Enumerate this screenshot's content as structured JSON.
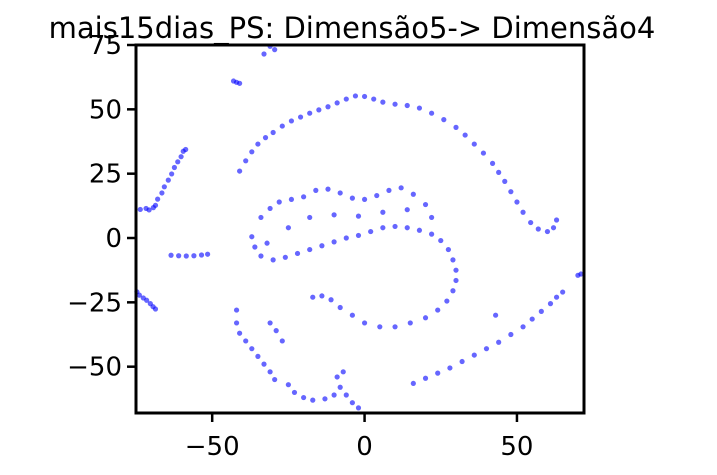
{
  "chart_data": {
    "type": "scatter",
    "title": "mais15dias_PS: Dimensão5-> Dimensão4",
    "xlabel": "",
    "ylabel": "",
    "xlim": [
      -75,
      72
    ],
    "ylim": [
      -68,
      75
    ],
    "xticks": [
      -50,
      0,
      50
    ],
    "xtick_labels": [
      "−50",
      "0",
      "50"
    ],
    "yticks": [
      75,
      50,
      25,
      0,
      -25,
      -50
    ],
    "ytick_labels": [
      "75",
      "50",
      "25",
      "0",
      "−25",
      "−50"
    ],
    "grid": false,
    "legend": "none",
    "color": "#0000ff",
    "series": [
      {
        "values": [
          {
            "x": -73.6,
            "y": 11.1
          },
          {
            "x": -71.7,
            "y": 11.5
          },
          {
            "x": -70.7,
            "y": 10.9
          },
          {
            "x": -69.3,
            "y": 11.8
          },
          {
            "x": -68.6,
            "y": 12.7
          },
          {
            "x": -67.9,
            "y": 15.1
          },
          {
            "x": -66.5,
            "y": 17.5
          },
          {
            "x": -65.7,
            "y": 19.9
          },
          {
            "x": -64.4,
            "y": 22.5
          },
          {
            "x": -63.3,
            "y": 24.9
          },
          {
            "x": -62.4,
            "y": 27.4
          },
          {
            "x": -61.3,
            "y": 29.6
          },
          {
            "x": -60.2,
            "y": 31.6
          },
          {
            "x": -59.5,
            "y": 33.7
          },
          {
            "x": -58.7,
            "y": 34.4
          },
          {
            "x": -74.7,
            "y": -20.9
          },
          {
            "x": -73.9,
            "y": -22.2
          },
          {
            "x": -72.6,
            "y": -23.3
          },
          {
            "x": -71.5,
            "y": -24.2
          },
          {
            "x": -70.3,
            "y": -25.5
          },
          {
            "x": -69.4,
            "y": -26.7
          },
          {
            "x": -68.6,
            "y": -27.6
          },
          {
            "x": -63.5,
            "y": -6.7
          },
          {
            "x": -61.0,
            "y": -6.9
          },
          {
            "x": -58.5,
            "y": -7.0
          },
          {
            "x": -56.0,
            "y": -6.9
          },
          {
            "x": -53.5,
            "y": -6.6
          },
          {
            "x": -51.5,
            "y": -6.3
          },
          {
            "x": -43.0,
            "y": 61.0
          },
          {
            "x": -42.0,
            "y": 60.5
          },
          {
            "x": -41.0,
            "y": 60.1
          },
          {
            "x": -31.0,
            "y": 74.5
          },
          {
            "x": -29.5,
            "y": 73.2
          },
          {
            "x": -33.0,
            "y": 71.5
          },
          {
            "x": -41.0,
            "y": 26.0
          },
          {
            "x": -39.0,
            "y": 30.0
          },
          {
            "x": -37.0,
            "y": 33.5
          },
          {
            "x": -35.0,
            "y": 36.5
          },
          {
            "x": -32.5,
            "y": 39.0
          },
          {
            "x": -30.0,
            "y": 41.0
          },
          {
            "x": -27.0,
            "y": 43.5
          },
          {
            "x": -24.0,
            "y": 45.5
          },
          {
            "x": -21.0,
            "y": 47.0
          },
          {
            "x": -18.0,
            "y": 48.5
          },
          {
            "x": -15.0,
            "y": 49.8
          },
          {
            "x": -12.0,
            "y": 51.0
          },
          {
            "x": -9.0,
            "y": 52.5
          },
          {
            "x": -6.0,
            "y": 54.0
          },
          {
            "x": -3.0,
            "y": 55.2
          },
          {
            "x": 0.0,
            "y": 55.0
          },
          {
            "x": 3.0,
            "y": 54.0
          },
          {
            "x": 6.0,
            "y": 52.8
          },
          {
            "x": 10.0,
            "y": 52.0
          },
          {
            "x": 14.0,
            "y": 51.5
          },
          {
            "x": 18.0,
            "y": 50.5
          },
          {
            "x": 22.0,
            "y": 48.5
          },
          {
            "x": 26.0,
            "y": 46.0
          },
          {
            "x": 30.0,
            "y": 43.0
          },
          {
            "x": 33.0,
            "y": 40.0
          },
          {
            "x": 36.0,
            "y": 36.5
          },
          {
            "x": 39.0,
            "y": 33.0
          },
          {
            "x": 42.0,
            "y": 29.0
          },
          {
            "x": 44.0,
            "y": 25.5
          },
          {
            "x": 46.0,
            "y": 22.0
          },
          {
            "x": 48.0,
            "y": 18.0
          },
          {
            "x": 50.0,
            "y": 14.0
          },
          {
            "x": 52.0,
            "y": 10.0
          },
          {
            "x": 54.5,
            "y": 6.0
          },
          {
            "x": 57.0,
            "y": 3.5
          },
          {
            "x": 60.0,
            "y": 2.5
          },
          {
            "x": 62.0,
            "y": 4.0
          },
          {
            "x": 63.0,
            "y": 7.0
          },
          {
            "x": -37.0,
            "y": 0.5
          },
          {
            "x": -36.0,
            "y": -3.5
          },
          {
            "x": -34.0,
            "y": -7.0
          },
          {
            "x": -30.0,
            "y": -8.5
          },
          {
            "x": -26.0,
            "y": -7.5
          },
          {
            "x": -22.0,
            "y": -6.0
          },
          {
            "x": -18.0,
            "y": -4.5
          },
          {
            "x": -14.0,
            "y": -3.0
          },
          {
            "x": -10.0,
            "y": -1.5
          },
          {
            "x": -6.0,
            "y": 0.0
          },
          {
            "x": -2.0,
            "y": 1.0
          },
          {
            "x": 2.0,
            "y": 2.5
          },
          {
            "x": 6.0,
            "y": 4.0
          },
          {
            "x": 10.0,
            "y": 4.5
          },
          {
            "x": 14.0,
            "y": 4.0
          },
          {
            "x": 18.0,
            "y": 3.0
          },
          {
            "x": 22.0,
            "y": 1.5
          },
          {
            "x": 25.0,
            "y": -1.0
          },
          {
            "x": 27.5,
            "y": -4.5
          },
          {
            "x": 29.0,
            "y": -8.5
          },
          {
            "x": 30.0,
            "y": -12.5
          },
          {
            "x": 30.0,
            "y": -16.5
          },
          {
            "x": 29.0,
            "y": -20.5
          },
          {
            "x": 27.0,
            "y": -24.5
          },
          {
            "x": 24.0,
            "y": -28.0
          },
          {
            "x": 20.0,
            "y": -31.0
          },
          {
            "x": 15.0,
            "y": -33.0
          },
          {
            "x": 10.0,
            "y": -34.5
          },
          {
            "x": 5.0,
            "y": -34.5
          },
          {
            "x": 0.0,
            "y": -33.0
          },
          {
            "x": -4.0,
            "y": -30.0
          },
          {
            "x": -8.0,
            "y": -27.0
          },
          {
            "x": -11.0,
            "y": -24.0
          },
          {
            "x": -14.0,
            "y": -22.5
          },
          {
            "x": -17.0,
            "y": -23.0
          },
          {
            "x": -34.0,
            "y": 8.0
          },
          {
            "x": -31.0,
            "y": 11.5
          },
          {
            "x": -28.0,
            "y": 14.0
          },
          {
            "x": -24.0,
            "y": 15.0
          },
          {
            "x": -20.0,
            "y": 16.0
          },
          {
            "x": -16.0,
            "y": 18.5
          },
          {
            "x": -12.0,
            "y": 19.0
          },
          {
            "x": -8.0,
            "y": 17.5
          },
          {
            "x": -4.0,
            "y": 15.5
          },
          {
            "x": 0.0,
            "y": 15.0
          },
          {
            "x": 4.0,
            "y": 16.5
          },
          {
            "x": 8.0,
            "y": 18.5
          },
          {
            "x": 12.0,
            "y": 19.5
          },
          {
            "x": 16.0,
            "y": 17.0
          },
          {
            "x": 20.0,
            "y": 13.0
          },
          {
            "x": -32.0,
            "y": -2.0
          },
          {
            "x": -25.0,
            "y": 4.0
          },
          {
            "x": -18.0,
            "y": 8.0
          },
          {
            "x": -10.0,
            "y": 9.0
          },
          {
            "x": -2.0,
            "y": 8.5
          },
          {
            "x": 6.0,
            "y": 10.0
          },
          {
            "x": 14.0,
            "y": 11.0
          },
          {
            "x": 22.0,
            "y": 8.0
          },
          {
            "x": -42.0,
            "y": -28.0
          },
          {
            "x": -42.0,
            "y": -33.0
          },
          {
            "x": -41.0,
            "y": -37.0
          },
          {
            "x": -39.0,
            "y": -40.0
          },
          {
            "x": -37.0,
            "y": -43.0
          },
          {
            "x": -35.0,
            "y": -46.0
          },
          {
            "x": -33.0,
            "y": -49.0
          },
          {
            "x": -31.0,
            "y": -52.0
          },
          {
            "x": -29.5,
            "y": -55.0
          },
          {
            "x": -31.0,
            "y": -33.0
          },
          {
            "x": -29.0,
            "y": -36.0
          },
          {
            "x": -27.0,
            "y": -40.0
          },
          {
            "x": -25.0,
            "y": -57.0
          },
          {
            "x": -23.0,
            "y": -60.0
          },
          {
            "x": -20.0,
            "y": -62.0
          },
          {
            "x": -17.0,
            "y": -63.0
          },
          {
            "x": -13.0,
            "y": -62.5
          },
          {
            "x": -10.0,
            "y": -61.0
          },
          {
            "x": -8.0,
            "y": -58.0
          },
          {
            "x": -6.0,
            "y": -61.0
          },
          {
            "x": -4.0,
            "y": -64.0
          },
          {
            "x": -2.0,
            "y": -66.0
          },
          {
            "x": -9.0,
            "y": -54.0
          },
          {
            "x": -7.0,
            "y": -52.0
          },
          {
            "x": 16.0,
            "y": -56.5
          },
          {
            "x": 20.0,
            "y": -54.5
          },
          {
            "x": 24.0,
            "y": -52.5
          },
          {
            "x": 28.0,
            "y": -50.5
          },
          {
            "x": 32.0,
            "y": -48.0
          },
          {
            "x": 36.0,
            "y": -45.5
          },
          {
            "x": 40.0,
            "y": -43.0
          },
          {
            "x": 44.0,
            "y": -40.5
          },
          {
            "x": 48.0,
            "y": -37.5
          },
          {
            "x": 52.0,
            "y": -34.5
          },
          {
            "x": 55.0,
            "y": -31.5
          },
          {
            "x": 58.0,
            "y": -28.5
          },
          {
            "x": 61.0,
            "y": -25.5
          },
          {
            "x": 63.0,
            "y": -23.0
          },
          {
            "x": 65.0,
            "y": -21.0
          },
          {
            "x": 43.0,
            "y": -30.0
          },
          {
            "x": 70.0,
            "y": -14.5
          },
          {
            "x": 71.0,
            "y": -14.0
          }
        ]
      }
    ]
  }
}
